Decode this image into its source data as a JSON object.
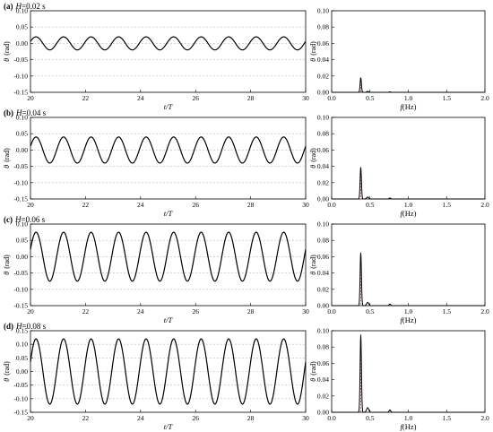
{
  "panels": [
    {
      "tag": "(a)",
      "label_rest": "=0.02 s",
      "amp": 0.02,
      "peak": 0.018
    },
    {
      "tag": "(b)",
      "label_rest": "=0.04 s",
      "amp": 0.04,
      "peak": 0.039
    },
    {
      "tag": "(c)",
      "label_rest": "=0.06 s",
      "amp": 0.075,
      "peak": 0.065
    },
    {
      "tag": "(d)",
      "label_rest": "=0.08 s",
      "amp": 0.12,
      "peak": 0.095
    }
  ],
  "label_H": "H",
  "left_xlabel_italic": "t/T",
  "right_xlabel_italic": "f",
  "right_xlabel_unit": "(Hz)",
  "ylabel_symbol": "θ",
  "ylabel_unit": "(rad)",
  "colors": {
    "signal": "#000000",
    "peak_marker": "#c0504d",
    "grid": "#bbbbbb"
  },
  "chart_data": [
    {
      "type": "line",
      "panel": "(a)",
      "xlim": [
        20,
        30
      ],
      "ylim": [
        -0.15,
        0.1
      ],
      "period_tT": 1.0,
      "amplitude": 0.02,
      "x_ticks": [
        "20",
        "22",
        "24",
        "26",
        "28",
        "30"
      ],
      "y_ticks": [
        "0.10",
        "0.05",
        "0.00",
        "-0.05",
        "-0.10",
        "-0.15"
      ],
      "grid": "horizontal dashed"
    },
    {
      "type": "line",
      "panel": "(a) spectrum",
      "xlim": [
        0,
        2
      ],
      "ylim": [
        0,
        0.1
      ],
      "peak_f": 0.38,
      "peak_value": 0.018,
      "x_ticks": [
        "0.0",
        "0.5",
        "1.0",
        "1.5",
        "2.0"
      ],
      "y_ticks": [
        "0.10",
        "0.08",
        "0.06",
        "0.04",
        "0.02",
        "0.00"
      ]
    },
    {
      "type": "line",
      "panel": "(b)",
      "xlim": [
        20,
        30
      ],
      "ylim": [
        -0.15,
        0.1
      ],
      "period_tT": 1.0,
      "amplitude": 0.04,
      "x_ticks": [
        "20",
        "22",
        "24",
        "26",
        "28",
        "30"
      ],
      "y_ticks": [
        "0.10",
        "0.05",
        "0.00",
        "-0.05",
        "-0.10",
        "-0.15"
      ],
      "grid": "horizontal dashed"
    },
    {
      "type": "line",
      "panel": "(b) spectrum",
      "xlim": [
        0,
        2
      ],
      "ylim": [
        0,
        0.1
      ],
      "peak_f": 0.38,
      "peak_value": 0.039,
      "x_ticks": [
        "0.0",
        "0.5",
        "1.0",
        "1.5",
        "2.0"
      ],
      "y_ticks": [
        "0.10",
        "0.08",
        "0.06",
        "0.04",
        "0.02",
        "0.00"
      ]
    },
    {
      "type": "line",
      "panel": "(c)",
      "xlim": [
        20,
        30
      ],
      "ylim": [
        -0.15,
        0.1
      ],
      "period_tT": 1.0,
      "amplitude": 0.075,
      "x_ticks": [
        "20",
        "22",
        "24",
        "26",
        "28",
        "30"
      ],
      "y_ticks": [
        "0.10",
        "0.05",
        "0.00",
        "-0.05",
        "-0.10",
        "-0.15"
      ],
      "grid": "horizontal dashed"
    },
    {
      "type": "line",
      "panel": "(c) spectrum",
      "xlim": [
        0,
        2
      ],
      "ylim": [
        0,
        0.1
      ],
      "peak_f": 0.38,
      "peak_value": 0.065,
      "x_ticks": [
        "0.0",
        "0.5",
        "1.0",
        "1.5",
        "2.0"
      ],
      "y_ticks": [
        "0.10",
        "0.08",
        "0.06",
        "0.04",
        "0.02",
        "0.00"
      ]
    },
    {
      "type": "line",
      "panel": "(d)",
      "xlim": [
        20,
        30
      ],
      "ylim": [
        -0.15,
        0.15
      ],
      "period_tT": 1.0,
      "amplitude": 0.12,
      "x_ticks": [
        "20",
        "22",
        "24",
        "26",
        "28",
        "30"
      ],
      "y_ticks": [
        "0.15",
        "0.10",
        "0.05",
        "0.00",
        "-0.05",
        "-0.10",
        "-0.15"
      ],
      "grid": "horizontal dashed"
    },
    {
      "type": "line",
      "panel": "(d) spectrum",
      "xlim": [
        0,
        2
      ],
      "ylim": [
        0,
        0.1
      ],
      "peak_f": 0.38,
      "peak_value": 0.095,
      "x_ticks": [
        "0.0",
        "0.5",
        "1.0",
        "1.5",
        "2.0"
      ],
      "y_ticks": [
        "0.10",
        "0.08",
        "0.06",
        "0.04",
        "0.02",
        "0.00"
      ]
    }
  ]
}
